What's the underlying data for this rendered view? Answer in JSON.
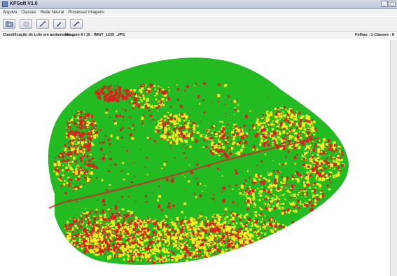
{
  "window": {
    "title": "KPSoft V1.0",
    "controls": [
      "_",
      "□"
    ]
  },
  "menu": [
    "Arquivo",
    "Classes",
    "Rede Neural",
    "Processar Imagens"
  ],
  "toolbar": {
    "buttons": [
      {
        "name": "open-image-icon"
      },
      {
        "name": "stop-icon"
      },
      {
        "name": "segment-tool-icon"
      },
      {
        "name": "brush-tool-icon"
      },
      {
        "name": "eraser-tool-icon"
      }
    ]
  },
  "status": {
    "left": "Classificação de Lote em andamento ...",
    "image": "Imagem 8 / 16 : IMGT_1235_.JPG",
    "right": "Folhas : 1 Classes : 8"
  },
  "leaf": {
    "colors": {
      "background": "#ffffff",
      "leaf": "#22bb22",
      "class_red": "#dd1f1f",
      "class_yellow": "#f2f01e"
    }
  }
}
